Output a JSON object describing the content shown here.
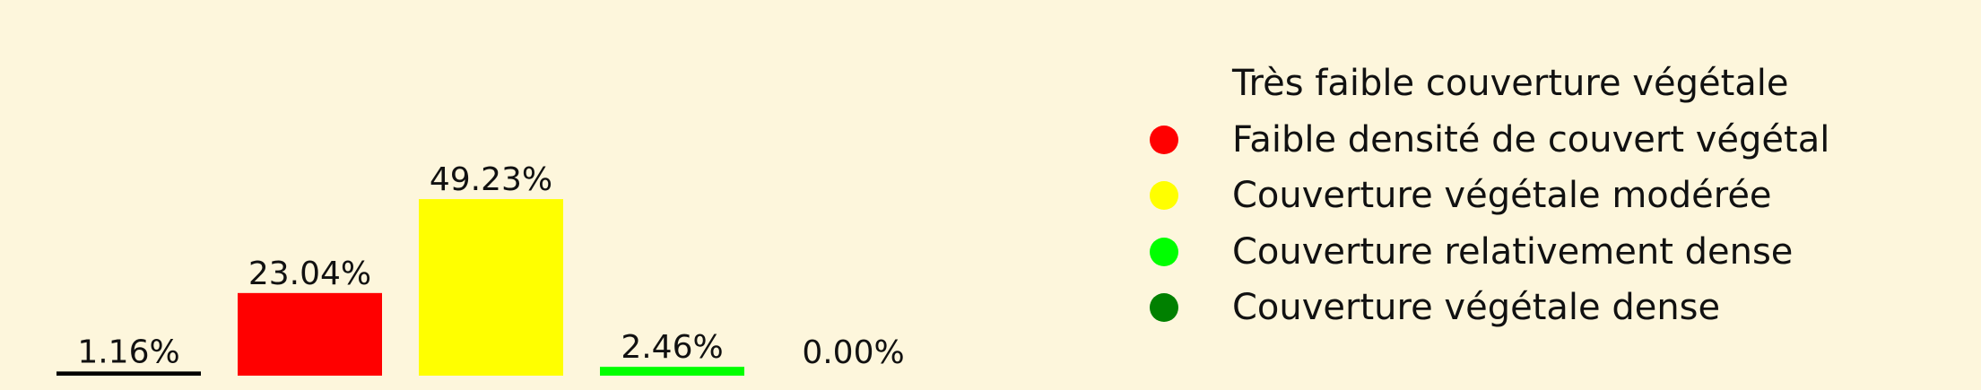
{
  "chart_data": {
    "type": "bar",
    "categories": [
      "Très faible couverture végétale",
      "Faible densité de couvert végétal",
      "Couverture végétale modérée",
      "Couverture relativement dense",
      "Couverture végétale dense"
    ],
    "values": [
      1.16,
      23.04,
      49.23,
      2.46,
      0.0
    ],
    "value_labels": [
      "1.16%",
      "23.04%",
      "49.23%",
      "2.46%",
      "0.00%"
    ],
    "colors": [
      "#000000",
      "#ff0000",
      "#ffff00",
      "#00ff00",
      "#008000"
    ],
    "legend": {
      "position": "right",
      "entries": [
        {
          "label": "Très faible couverture végétale",
          "color": "#fdf6dc"
        },
        {
          "label": "Faible densité de couvert végétal",
          "color": "#ff0000"
        },
        {
          "label": "Couverture végétale modérée",
          "color": "#ffff00"
        },
        {
          "label": "Couverture relativement dense",
          "color": "#00ff00"
        },
        {
          "label": "Couverture végétale dense",
          "color": "#008000"
        }
      ]
    },
    "background": "#fdf6dc",
    "grid": false,
    "axes_visible": false
  }
}
